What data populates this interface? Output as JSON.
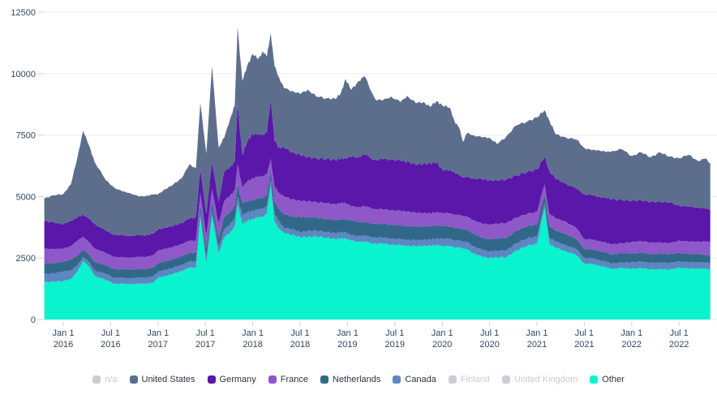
{
  "chart_data": {
    "type": "area",
    "stacked": true,
    "title": "",
    "xlabel": "",
    "ylabel": "",
    "ylim": [
      0,
      12500
    ],
    "y_ticks": [
      0,
      2500,
      5000,
      7500,
      10000,
      12500
    ],
    "grid": "horizontal",
    "legend_position": "bottom",
    "x_ticks": [
      {
        "label": "Jan 1",
        "year": "2016",
        "t": 2016.0
      },
      {
        "label": "Jul 1",
        "year": "2016",
        "t": 2016.5
      },
      {
        "label": "Jan 1",
        "year": "2017",
        "t": 2017.0
      },
      {
        "label": "Jul 1",
        "year": "2017",
        "t": 2017.5
      },
      {
        "label": "Jan 1",
        "year": "2018",
        "t": 2018.0
      },
      {
        "label": "Jul 1",
        "year": "2018",
        "t": 2018.5
      },
      {
        "label": "Jan 1",
        "year": "2019",
        "t": 2019.0
      },
      {
        "label": "Jul 1",
        "year": "2019",
        "t": 2019.5
      },
      {
        "label": "Jan 1",
        "year": "2020",
        "t": 2020.0
      },
      {
        "label": "Jul 1",
        "year": "2020",
        "t": 2020.5
      },
      {
        "label": "Jan 1",
        "year": "2021",
        "t": 2021.0
      },
      {
        "label": "Jul 1",
        "year": "2021",
        "t": 2021.5
      },
      {
        "label": "Jan 1",
        "year": "2022",
        "t": 2022.0
      },
      {
        "label": "Jul 1",
        "year": "2022",
        "t": 2022.5
      }
    ],
    "t": [
      2015.8,
      2015.9,
      2016.0,
      2016.08,
      2016.15,
      2016.21,
      2016.27,
      2016.33,
      2016.45,
      2016.54,
      2016.63,
      2016.7,
      2016.8,
      2016.87,
      2016.95,
      2017.0,
      2017.08,
      2017.16,
      2017.25,
      2017.33,
      2017.4,
      2017.447,
      2017.51,
      2017.57,
      2017.64,
      2017.7,
      2017.76,
      2017.81,
      2017.84,
      2017.89,
      2017.94,
      2018.0,
      2018.06,
      2018.11,
      2018.15,
      2018.19,
      2018.23,
      2018.28,
      2018.33,
      2018.42,
      2018.5,
      2018.58,
      2018.67,
      2018.78,
      2018.87,
      2018.93,
      2018.98,
      2019.04,
      2019.12,
      2019.18,
      2019.29,
      2019.37,
      2019.46,
      2019.56,
      2019.63,
      2019.72,
      2019.8,
      2019.87,
      2019.94,
      2020.0,
      2020.08,
      2020.13,
      2020.18,
      2020.22,
      2020.26,
      2020.33,
      2020.42,
      2020.5,
      2020.58,
      2020.68,
      2020.78,
      2020.9,
      2021.0,
      2021.08,
      2021.13,
      2021.2,
      2021.3,
      2021.42,
      2021.5,
      2021.58,
      2021.65,
      2021.73,
      2021.79,
      2021.9,
      2022.0,
      2022.1,
      2022.2,
      2022.3,
      2022.4,
      2022.5,
      2022.6,
      2022.7,
      2022.78,
      2022.83
    ],
    "series": [
      {
        "name": "Other",
        "color": "#09f3cf",
        "values": [
          1520,
          1540,
          1560,
          1650,
          1950,
          2390,
          2150,
          1790,
          1600,
          1460,
          1450,
          1440,
          1460,
          1450,
          1500,
          1690,
          1780,
          1850,
          1980,
          2100,
          2120,
          4140,
          2280,
          4200,
          2680,
          3340,
          3540,
          3770,
          4660,
          3900,
          4000,
          4100,
          4150,
          4200,
          4300,
          5460,
          3950,
          3700,
          3510,
          3450,
          3340,
          3360,
          3380,
          3320,
          3280,
          3290,
          3310,
          3200,
          3180,
          3150,
          3100,
          3080,
          3050,
          3020,
          3000,
          2980,
          3000,
          3010,
          3020,
          3000,
          2980,
          2950,
          2920,
          2900,
          2850,
          2700,
          2550,
          2510,
          2520,
          2540,
          2800,
          3000,
          3080,
          4550,
          3100,
          2900,
          2800,
          2600,
          2280,
          2250,
          2200,
          2120,
          2060,
          2100,
          2060,
          2100,
          2030,
          2060,
          2020,
          2120,
          2060,
          2080,
          2050,
          2050
        ]
      },
      {
        "name": "Canada",
        "color": "#5c87c0",
        "values": [
          330,
          340,
          390,
          350,
          250,
          160,
          200,
          210,
          250,
          240,
          240,
          240,
          250,
          250,
          260,
          250,
          250,
          250,
          250,
          250,
          250,
          210,
          250,
          220,
          270,
          330,
          340,
          330,
          340,
          350,
          350,
          330,
          330,
          330,
          300,
          260,
          330,
          300,
          200,
          250,
          200,
          250,
          240,
          240,
          240,
          250,
          250,
          220,
          230,
          250,
          250,
          250,
          250,
          250,
          250,
          240,
          240,
          250,
          260,
          300,
          290,
          280,
          280,
          280,
          290,
          290,
          280,
          270,
          270,
          280,
          300,
          300,
          300,
          170,
          250,
          250,
          250,
          250,
          230,
          230,
          230,
          230,
          220,
          220,
          270,
          260,
          270,
          270,
          270,
          260,
          260,
          260,
          260,
          260
        ]
      },
      {
        "name": "Netherlands",
        "color": "#31688a",
        "values": [
          430,
          420,
          400,
          440,
          400,
          300,
          300,
          350,
          350,
          350,
          350,
          350,
          350,
          350,
          360,
          350,
          350,
          350,
          350,
          350,
          350,
          350,
          370,
          380,
          350,
          500,
          500,
          500,
          500,
          500,
          450,
          440,
          450,
          450,
          450,
          400,
          480,
          500,
          560,
          500,
          630,
          550,
          530,
          530,
          530,
          530,
          530,
          590,
          570,
          550,
          550,
          560,
          560,
          550,
          550,
          560,
          550,
          540,
          540,
          520,
          510,
          510,
          500,
          510,
          510,
          510,
          490,
          490,
          500,
          510,
          500,
          500,
          490,
          360,
          480,
          450,
          450,
          400,
          370,
          370,
          370,
          370,
          370,
          380,
          350,
          360,
          360,
          360,
          360,
          340,
          340,
          340,
          300,
          300
        ]
      },
      {
        "name": "France",
        "color": "#8f58c9",
        "values": [
          600,
          570,
          530,
          550,
          600,
          530,
          500,
          550,
          500,
          500,
          490,
          490,
          490,
          500,
          500,
          510,
          510,
          500,
          500,
          500,
          500,
          450,
          500,
          500,
          600,
          660,
          670,
          650,
          800,
          650,
          800,
          890,
          870,
          870,
          850,
          430,
          640,
          650,
          730,
          700,
          660,
          650,
          630,
          640,
          650,
          660,
          670,
          590,
          600,
          650,
          600,
          590,
          590,
          600,
          600,
          570,
          540,
          530,
          530,
          530,
          530,
          540,
          540,
          530,
          530,
          550,
          580,
          600,
          610,
          600,
          550,
          500,
          510,
          420,
          500,
          500,
          500,
          450,
          400,
          400,
          400,
          400,
          410,
          400,
          470,
          480,
          460,
          450,
          450,
          500,
          500,
          500,
          560,
          560
        ]
      },
      {
        "name": "Germany",
        "color": "#5a17a9",
        "values": [
          1120,
          1080,
          990,
          1030,
          950,
          890,
          950,
          1000,
          900,
          900,
          890,
          880,
          880,
          870,
          880,
          850,
          850,
          850,
          850,
          900,
          930,
          940,
          900,
          1100,
          900,
          1190,
          1150,
          1150,
          2440,
          1300,
          1600,
          1820,
          1700,
          1700,
          1700,
          2450,
          1850,
          1850,
          1980,
          1900,
          1860,
          1800,
          1770,
          1790,
          1800,
          1800,
          1810,
          2000,
          2040,
          2100,
          2000,
          2030,
          2070,
          2030,
          2020,
          1950,
          2000,
          2020,
          2030,
          1750,
          1740,
          1720,
          1610,
          1580,
          1600,
          1700,
          1800,
          1800,
          1750,
          1770,
          1700,
          1700,
          1720,
          1100,
          1720,
          1600,
          1550,
          1600,
          1820,
          1800,
          1800,
          1810,
          1840,
          1750,
          1680,
          1650,
          1660,
          1660,
          1650,
          1420,
          1420,
          1380,
          1330,
          1320
        ]
      },
      {
        "name": "United States",
        "color": "#5d6e8d",
        "values": [
          930,
          1100,
          1230,
          1480,
          2450,
          3410,
          3000,
          2520,
          2060,
          1910,
          1780,
          1750,
          1570,
          1610,
          1580,
          1450,
          1560,
          1690,
          1820,
          2200,
          2000,
          2710,
          2450,
          3900,
          2200,
          1380,
          1950,
          2300,
          3140,
          3000,
          3100,
          3220,
          3100,
          3350,
          3100,
          2650,
          3050,
          2830,
          2420,
          2500,
          2480,
          2740,
          2520,
          2480,
          2470,
          2670,
          3210,
          2740,
          3080,
          3200,
          2470,
          2390,
          2550,
          2390,
          2680,
          2500,
          2520,
          2300,
          2500,
          2610,
          2570,
          2060,
          1940,
          1430,
          1790,
          1750,
          1700,
          1730,
          1480,
          1760,
          2040,
          2060,
          2120,
          1900,
          2050,
          1820,
          1860,
          2010,
          1880,
          1830,
          1900,
          1870,
          1950,
          2070,
          1820,
          1950,
          1820,
          2000,
          1870,
          1920,
          2120,
          1890,
          2050,
          1850
        ]
      }
    ],
    "legend": [
      {
        "label": "n/a",
        "color": "#c9ced6",
        "disabled": true
      },
      {
        "label": "United States",
        "color": "#5d6e8d",
        "disabled": false
      },
      {
        "label": "Germany",
        "color": "#5a17a9",
        "disabled": false
      },
      {
        "label": "France",
        "color": "#8f58c9",
        "disabled": false
      },
      {
        "label": "Netherlands",
        "color": "#31688a",
        "disabled": false
      },
      {
        "label": "Canada",
        "color": "#5c87c0",
        "disabled": false
      },
      {
        "label": "Finland",
        "color": "#c9ced6",
        "disabled": true
      },
      {
        "label": "United Kingdom",
        "color": "#c9ced6",
        "disabled": true
      },
      {
        "label": "Other",
        "color": "#09f3cf",
        "disabled": false
      }
    ],
    "colors": {
      "axis_text": "#33475b",
      "gridline": "#ebedf0",
      "tick": "#d2d6db",
      "background": "#ffffff",
      "legend_text": "#2b3340",
      "legend_disabled_text": "#c6cbd2"
    }
  }
}
